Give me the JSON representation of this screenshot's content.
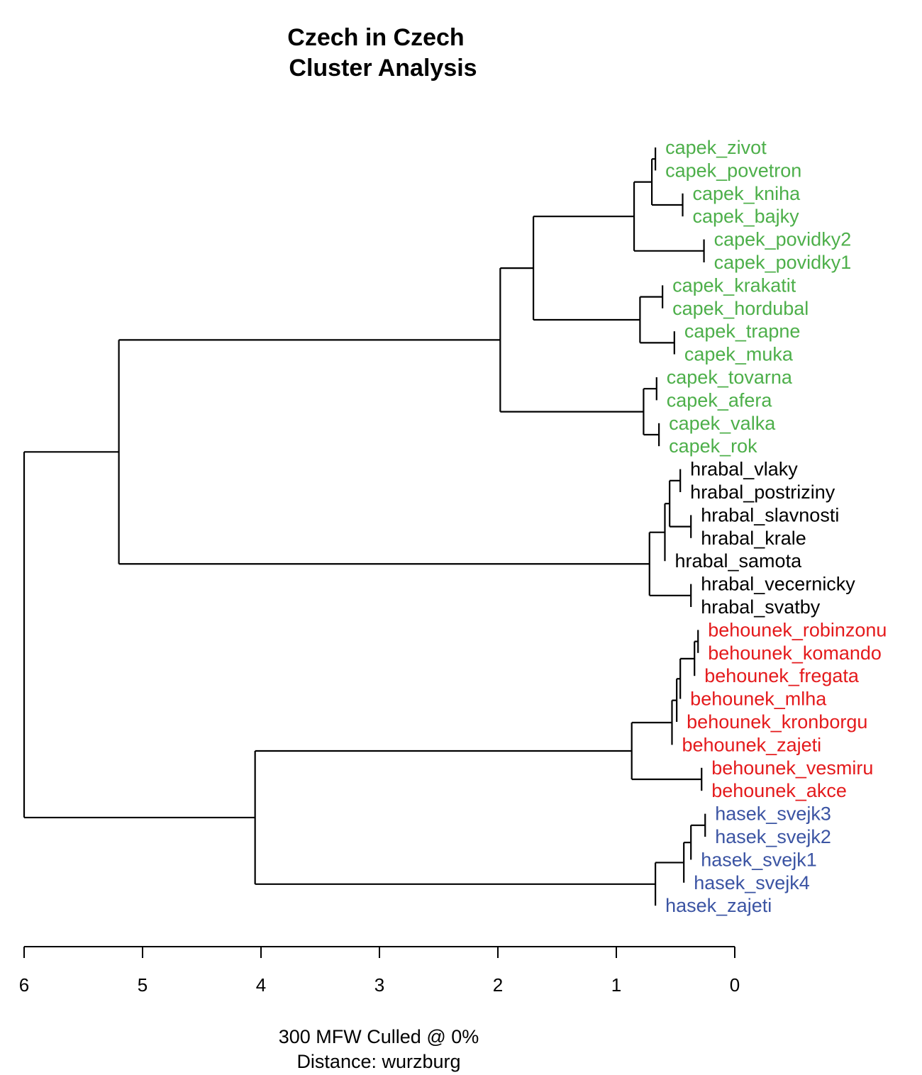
{
  "title_line1": "Czech in Czech",
  "title_line2": "Cluster Analysis",
  "caption_line1": "300 MFW  Culled @ 0%",
  "caption_line2": "Distance: wurzburg",
  "colors": {
    "capek": "#4daf4a",
    "hrabal": "#000000",
    "behounek": "#e41a1c",
    "hasek": "#3b54a3"
  },
  "chart_data": {
    "type": "dendrogram",
    "title": "Czech in Czech\nCluster Analysis",
    "xlabel": "300 MFW  Culled @ 0%\nDistance: wurzburg",
    "xlim": [
      6,
      0
    ],
    "ticks": [
      6,
      5,
      4,
      3,
      2,
      1,
      0
    ],
    "leaves": [
      {
        "name": "capek_zivot",
        "group": "capek",
        "height": 0.67
      },
      {
        "name": "capek_povetron",
        "group": "capek",
        "height": 0.67
      },
      {
        "name": "capek_kniha",
        "group": "capek",
        "height": 0.44
      },
      {
        "name": "capek_bajky",
        "group": "capek",
        "height": 0.44
      },
      {
        "name": "capek_povidky2",
        "group": "capek",
        "height": 0.26
      },
      {
        "name": "capek_povidky1",
        "group": "capek",
        "height": 0.26
      },
      {
        "name": "capek_krakatit",
        "group": "capek",
        "height": 0.61
      },
      {
        "name": "capek_hordubal",
        "group": "capek",
        "height": 0.61
      },
      {
        "name": "capek_trapne",
        "group": "capek",
        "height": 0.51
      },
      {
        "name": "capek_muka",
        "group": "capek",
        "height": 0.51
      },
      {
        "name": "capek_tovarna",
        "group": "capek",
        "height": 0.66
      },
      {
        "name": "capek_afera",
        "group": "capek",
        "height": 0.66
      },
      {
        "name": "capek_valka",
        "group": "capek",
        "height": 0.64
      },
      {
        "name": "capek_rok",
        "group": "capek",
        "height": 0.64
      },
      {
        "name": "hrabal_vlaky",
        "group": "hrabal",
        "height": 0.46
      },
      {
        "name": "hrabal_postriziny",
        "group": "hrabal",
        "height": 0.46
      },
      {
        "name": "hrabal_slavnosti",
        "group": "hrabal",
        "height": 0.37
      },
      {
        "name": "hrabal_krale",
        "group": "hrabal",
        "height": 0.37
      },
      {
        "name": "hrabal_samota",
        "group": "hrabal",
        "height": 0.59
      },
      {
        "name": "hrabal_vecernicky",
        "group": "hrabal",
        "height": 0.37
      },
      {
        "name": "hrabal_svatby",
        "group": "hrabal",
        "height": 0.37
      },
      {
        "name": "behounek_robinzonu",
        "group": "behounek",
        "height": 0.31
      },
      {
        "name": "behounek_komando",
        "group": "behounek",
        "height": 0.31
      },
      {
        "name": "behounek_fregata",
        "group": "behounek",
        "height": 0.34
      },
      {
        "name": "behounek_mlha",
        "group": "behounek",
        "height": 0.46
      },
      {
        "name": "behounek_kronborgu",
        "group": "behounek",
        "height": 0.49
      },
      {
        "name": "behounek_zajeti",
        "group": "behounek",
        "height": 0.53
      },
      {
        "name": "behounek_vesmiru",
        "group": "behounek",
        "height": 0.28
      },
      {
        "name": "behounek_akce",
        "group": "behounek",
        "height": 0.28
      },
      {
        "name": "hasek_svejk3",
        "group": "hasek",
        "height": 0.25
      },
      {
        "name": "hasek_svejk2",
        "group": "hasek",
        "height": 0.25
      },
      {
        "name": "hasek_svejk1",
        "group": "hasek",
        "height": 0.37
      },
      {
        "name": "hasek_svejk4",
        "group": "hasek",
        "height": 0.43
      },
      {
        "name": "hasek_zajeti",
        "group": "hasek",
        "height": 0.67
      }
    ],
    "tree": {
      "h": 6.0,
      "c": [
        {
          "h": 5.2,
          "c": [
            {
              "h": 1.98,
              "c": [
                {
                  "h": 1.7,
                  "c": [
                    {
                      "h": 0.85,
                      "c": [
                        {
                          "h": 0.7,
                          "c": [
                            {
                              "h": 0.67,
                              "c": [
                                0,
                                1
                              ]
                            },
                            {
                              "h": 0.44,
                              "c": [
                                2,
                                3
                              ]
                            }
                          ]
                        },
                        {
                          "h": 0.26,
                          "c": [
                            4,
                            5
                          ]
                        }
                      ]
                    },
                    {
                      "h": 0.8,
                      "c": [
                        {
                          "h": 0.61,
                          "c": [
                            6,
                            7
                          ]
                        },
                        {
                          "h": 0.51,
                          "c": [
                            8,
                            9
                          ]
                        }
                      ]
                    }
                  ]
                },
                {
                  "h": 0.77,
                  "c": [
                    {
                      "h": 0.66,
                      "c": [
                        10,
                        11
                      ]
                    },
                    {
                      "h": 0.64,
                      "c": [
                        12,
                        13
                      ]
                    }
                  ]
                }
              ]
            },
            {
              "h": 0.72,
              "c": [
                {
                  "h": 0.59,
                  "c": [
                    {
                      "h": 0.55,
                      "c": [
                        {
                          "h": 0.46,
                          "c": [
                            14,
                            15
                          ]
                        },
                        {
                          "h": 0.37,
                          "c": [
                            16,
                            17
                          ]
                        }
                      ]
                    },
                    18
                  ]
                },
                {
                  "h": 0.37,
                  "c": [
                    19,
                    20
                  ]
                }
              ]
            }
          ]
        },
        {
          "h": 4.05,
          "c": [
            {
              "h": 0.87,
              "c": [
                {
                  "h": 0.53,
                  "c": [
                    {
                      "h": 0.49,
                      "c": [
                        {
                          "h": 0.46,
                          "c": [
                            {
                              "h": 0.34,
                              "c": [
                                {
                                  "h": 0.31,
                                  "c": [
                                    21,
                                    22
                                  ]
                                },
                                23
                              ]
                            },
                            24
                          ]
                        },
                        25
                      ]
                    },
                    26
                  ]
                },
                {
                  "h": 0.28,
                  "c": [
                    27,
                    28
                  ]
                }
              ]
            },
            {
              "h": 0.67,
              "c": [
                {
                  "h": 0.43,
                  "c": [
                    {
                      "h": 0.37,
                      "c": [
                        {
                          "h": 0.25,
                          "c": [
                            29,
                            30
                          ]
                        },
                        31
                      ]
                    },
                    32
                  ]
                },
                33
              ]
            }
          ]
        }
      ]
    }
  }
}
